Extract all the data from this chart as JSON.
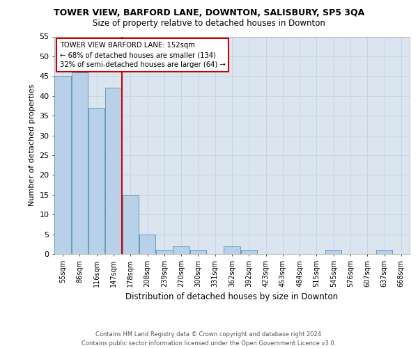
{
  "title": "TOWER VIEW, BARFORD LANE, DOWNTON, SALISBURY, SP5 3QA",
  "subtitle": "Size of property relative to detached houses in Downton",
  "xlabel": "Distribution of detached houses by size in Downton",
  "ylabel": "Number of detached properties",
  "categories": [
    "55sqm",
    "86sqm",
    "116sqm",
    "147sqm",
    "178sqm",
    "208sqm",
    "239sqm",
    "270sqm",
    "300sqm",
    "331sqm",
    "362sqm",
    "392sqm",
    "423sqm",
    "453sqm",
    "484sqm",
    "515sqm",
    "545sqm",
    "576sqm",
    "607sqm",
    "637sqm",
    "668sqm"
  ],
  "values": [
    45,
    46,
    37,
    42,
    15,
    5,
    1,
    2,
    1,
    0,
    2,
    1,
    0,
    0,
    0,
    0,
    1,
    0,
    0,
    1,
    0
  ],
  "bar_color": "#b8d0e8",
  "bar_edgecolor": "#6699bb",
  "ref_line_index": 3.5,
  "reference_label": "TOWER VIEW BARFORD LANE: 152sqm",
  "annotation_line1": "← 68% of detached houses are smaller (134)",
  "annotation_line2": "32% of semi-detached houses are larger (64) →",
  "annotation_box_facecolor": "#ffffff",
  "annotation_box_edgecolor": "#cc0000",
  "ref_line_color": "#cc0000",
  "ylim": [
    0,
    55
  ],
  "yticks": [
    0,
    5,
    10,
    15,
    20,
    25,
    30,
    35,
    40,
    45,
    50,
    55
  ],
  "grid_color": "#c8d4e4",
  "background_color": "#dbe5f0",
  "footer_line1": "Contains HM Land Registry data © Crown copyright and database right 2024.",
  "footer_line2": "Contains public sector information licensed under the Open Government Licence v3.0."
}
